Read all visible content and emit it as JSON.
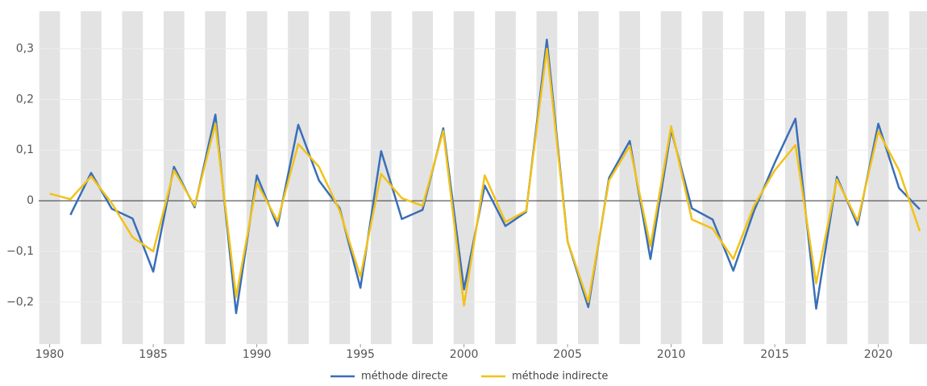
{
  "chart_data": {
    "type": "line",
    "x": [
      1980,
      1981,
      1982,
      1983,
      1984,
      1985,
      1986,
      1987,
      1988,
      1989,
      1990,
      1991,
      1992,
      1993,
      1994,
      1995,
      1996,
      1997,
      1998,
      1999,
      2000,
      2001,
      2002,
      2003,
      2004,
      2005,
      2006,
      2007,
      2008,
      2009,
      2010,
      2011,
      2012,
      2013,
      2014,
      2015,
      2016,
      2017,
      2018,
      2019,
      2020,
      2021,
      2022
    ],
    "series": [
      {
        "name": "méthode directe",
        "color": "#3a6fb8",
        "values": [
          null,
          -0.028,
          0.055,
          -0.016,
          -0.035,
          -0.14,
          0.067,
          -0.013,
          0.17,
          -0.222,
          0.05,
          -0.05,
          0.15,
          0.04,
          -0.015,
          -0.172,
          0.098,
          -0.036,
          -0.018,
          0.143,
          -0.175,
          0.03,
          -0.05,
          -0.022,
          0.318,
          -0.08,
          -0.21,
          0.045,
          0.118,
          -0.115,
          0.14,
          -0.015,
          -0.037,
          -0.138,
          -0.02,
          0.075,
          0.162,
          -0.213,
          0.047,
          -0.048,
          0.152,
          0.025,
          -0.017
        ]
      },
      {
        "name": "méthode indirecte",
        "color": "#f2c218",
        "values": [
          0.014,
          0.003,
          0.048,
          -0.005,
          -0.072,
          -0.1,
          0.06,
          -0.01,
          0.152,
          -0.19,
          0.035,
          -0.04,
          0.112,
          0.067,
          -0.02,
          -0.15,
          0.053,
          0.005,
          -0.01,
          0.138,
          -0.207,
          0.05,
          -0.042,
          -0.02,
          0.3,
          -0.08,
          -0.2,
          0.04,
          0.108,
          -0.09,
          0.147,
          -0.037,
          -0.055,
          -0.115,
          -0.01,
          0.06,
          0.11,
          -0.163,
          0.042,
          -0.04,
          0.137,
          0.06,
          -0.06
        ]
      }
    ],
    "xlim": [
      1979.47,
      2022.35
    ],
    "xticks": [
      1980,
      1985,
      1990,
      1995,
      2000,
      2005,
      2010,
      2015,
      2020
    ],
    "ylim": [
      -0.283,
      0.374
    ],
    "yticks": [
      {
        "value": -0.2,
        "label": "−0,2"
      },
      {
        "value": -0.1,
        "label": "−0,1"
      },
      0,
      {
        "value": 0.1,
        "label": "0,1"
      },
      {
        "value": 0.2,
        "label": "0,2"
      },
      {
        "value": 0.3,
        "label": "0,3"
      }
    ],
    "grid": true,
    "alternating_bands": true,
    "legend": "bottom"
  }
}
